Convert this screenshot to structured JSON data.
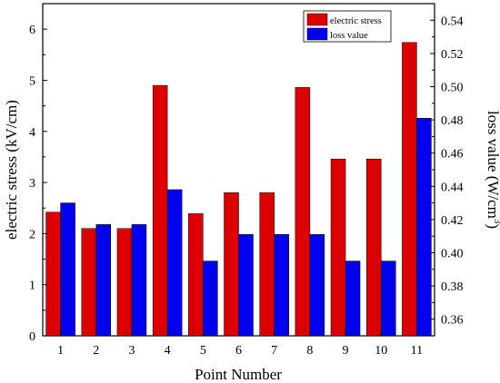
{
  "chart_data": {
    "type": "bar",
    "categories": [
      "1",
      "2",
      "3",
      "4",
      "5",
      "6",
      "7",
      "8",
      "9",
      "10",
      "11"
    ],
    "series": [
      {
        "name": "electric stress",
        "axis": "left",
        "color": "#dd0000",
        "values": [
          2.42,
          2.1,
          2.1,
          4.9,
          2.39,
          2.8,
          2.8,
          4.86,
          3.46,
          3.46,
          5.74
        ]
      },
      {
        "name": "loss value",
        "axis": "right",
        "color": "#0000ee",
        "values": [
          0.43,
          0.417,
          0.417,
          0.438,
          0.395,
          0.411,
          0.411,
          0.411,
          0.395,
          0.395,
          0.481
        ]
      }
    ],
    "xlabel": "Point Number",
    "ylabel_left": "electric stress (kV/cm)",
    "ylabel_right_parts": [
      "loss value (W/cm",
      "3",
      ")"
    ],
    "ylim_left": [
      0,
      6.5
    ],
    "yticks_left": [
      "0",
      "1",
      "2",
      "3",
      "4",
      "5",
      "6"
    ],
    "ylim_right": [
      0.35,
      0.55
    ],
    "yticks_right": [
      "0.36",
      "0.38",
      "0.40",
      "0.42",
      "0.44",
      "0.46",
      "0.48",
      "0.50",
      "0.52",
      "0.54"
    ],
    "legend_position": "top-right-inside",
    "grid": false
  }
}
